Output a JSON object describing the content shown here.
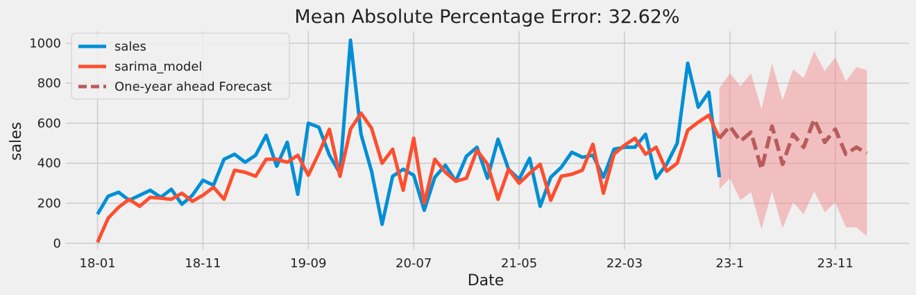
{
  "chart_data": {
    "type": "line",
    "title": "Mean Absolute Percentage Error: 32.62%",
    "xlabel": "Date",
    "ylabel": "sales",
    "ylim": [
      -30,
      1060
    ],
    "yticks": [
      0,
      200,
      400,
      600,
      800,
      1000
    ],
    "xticks": [
      "18-01",
      "18-11",
      "19-09",
      "20-07",
      "21-05",
      "22-03",
      "23-1",
      "23-11"
    ],
    "xtick_index": [
      0,
      10,
      20,
      30,
      40,
      50,
      60,
      70
    ],
    "grid": true,
    "legend_position": "top-left",
    "x_start": "2018-01",
    "x_step": "month",
    "series": [
      {
        "name": "sales",
        "color": "#008fd5",
        "style": "solid",
        "start_index": 0,
        "values": [
          145,
          235,
          255,
          215,
          240,
          265,
          230,
          270,
          195,
          240,
          315,
          290,
          420,
          445,
          405,
          440,
          540,
          385,
          505,
          245,
          600,
          580,
          440,
          350,
          1015,
          545,
          360,
          95,
          335,
          370,
          340,
          165,
          330,
          390,
          310,
          435,
          480,
          325,
          520,
          370,
          320,
          425,
          185,
          330,
          380,
          455,
          430,
          440,
          330,
          470,
          480,
          480,
          545,
          325,
          395,
          500,
          900,
          680,
          755,
          330
        ]
      },
      {
        "name": "sarima_model",
        "color": "#fc4f30",
        "style": "solid",
        "start_index": 0,
        "values": [
          5,
          125,
          180,
          220,
          185,
          230,
          225,
          220,
          250,
          210,
          240,
          280,
          220,
          365,
          355,
          335,
          420,
          420,
          405,
          440,
          340,
          450,
          570,
          335,
          570,
          650,
          575,
          400,
          470,
          265,
          525,
          200,
          420,
          355,
          310,
          325,
          465,
          395,
          220,
          370,
          300,
          350,
          395,
          215,
          335,
          345,
          365,
          495,
          250,
          445,
          490,
          525,
          445,
          480,
          360,
          400,
          565,
          605,
          640,
          525
        ]
      },
      {
        "name": "One-year ahead Forecast",
        "color": "#b85c5c",
        "style": "dashed",
        "start_index": 59,
        "values": [
          525,
          585,
          510,
          555,
          370,
          585,
          395,
          545,
          480,
          620,
          505,
          570,
          445,
          480,
          450
        ],
        "lower": [
          270,
          325,
          215,
          255,
          70,
          260,
          75,
          205,
          145,
          260,
          155,
          205,
          80,
          80,
          35
        ],
        "upper": [
          775,
          850,
          785,
          850,
          670,
          900,
          715,
          870,
          825,
          960,
          860,
          930,
          810,
          880,
          865
        ],
        "band_color": "#f28e8e"
      }
    ]
  }
}
